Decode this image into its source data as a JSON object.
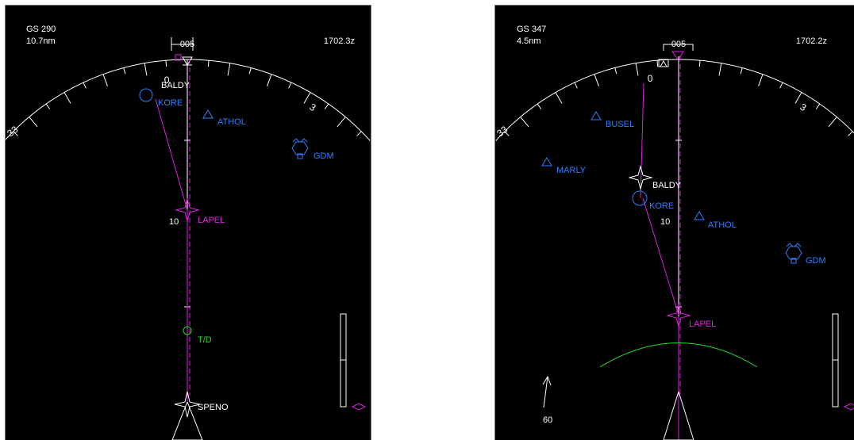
{
  "colors": {
    "background": "#000000",
    "white": "#ffffff",
    "magenta": "#e020e0",
    "navaid_blue": "#2f7fff",
    "top_of_descent_green": "#22dd22"
  },
  "left_display": {
    "ground_speed": "GS 290",
    "distance": "10.7nm",
    "heading_readout": "005",
    "time": "1702.3z",
    "compass_labels": {
      "c0": "0",
      "c3": "3",
      "c33": "33"
    },
    "range_ring_label": "10",
    "waypoints": {
      "baldy": "BALDY",
      "kore": "KORE",
      "athol": "ATHOL",
      "gdm": "GDM",
      "lapel": "LAPEL",
      "top_of_descent": "T/D",
      "speno": "SPENO"
    }
  },
  "right_display": {
    "ground_speed": "GS 347",
    "distance": "4.5nm",
    "heading_readout": "005",
    "time": "1702.2z",
    "compass_labels": {
      "c0": "0",
      "c3": "3",
      "c33": "33"
    },
    "range_ring_label": "10",
    "wind_speed": "60",
    "waypoints": {
      "busel": "BUSEL",
      "marly": "MARLY",
      "baldy": "BALDY",
      "kore": "KORE",
      "athol": "ATHOL",
      "gdm": "GDM",
      "lapel": "LAPEL"
    }
  }
}
